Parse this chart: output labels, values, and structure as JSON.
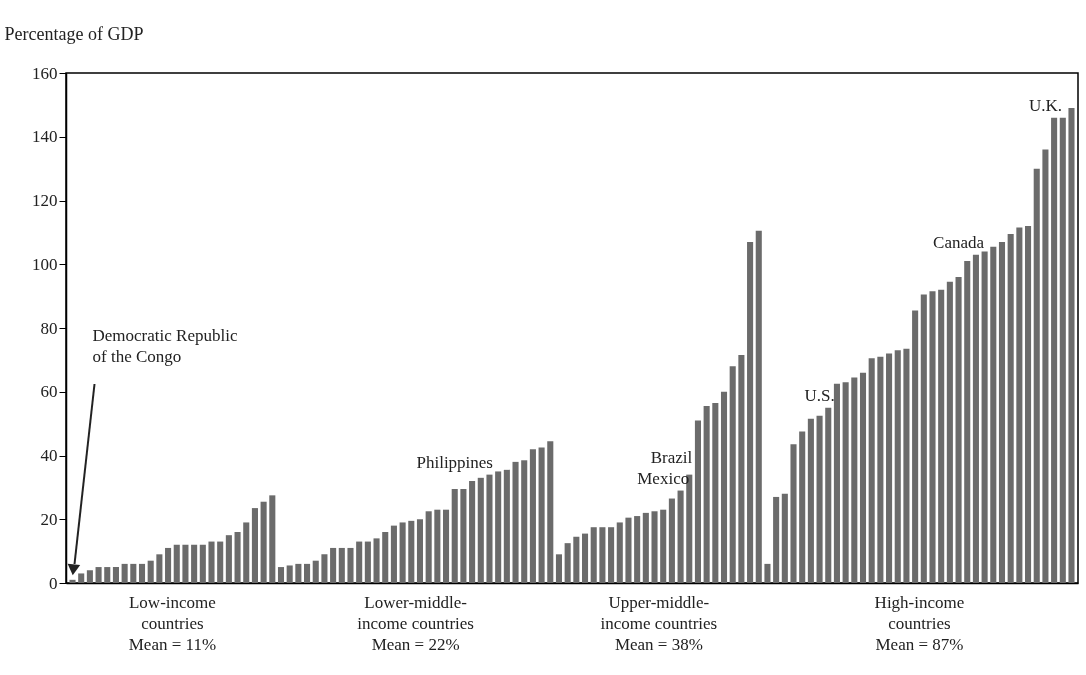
{
  "chart_data": {
    "type": "bar",
    "ylabel": "Percentage of GDP",
    "ylim": [
      0,
      160
    ],
    "yticks": [
      0,
      20,
      40,
      60,
      80,
      100,
      120,
      140,
      160
    ],
    "categories": [
      null,
      null,
      null,
      null,
      null,
      null,
      null,
      null,
      null,
      null,
      null,
      null,
      null,
      null,
      null,
      null,
      null,
      null,
      null,
      null,
      null,
      null,
      null,
      null,
      null,
      null,
      null,
      null,
      null,
      null,
      null,
      null,
      null,
      null,
      null,
      null,
      null,
      null,
      null,
      null,
      null,
      null,
      null,
      null,
      null,
      null,
      null,
      null,
      null,
      null,
      null,
      null,
      null,
      null,
      null,
      null,
      null,
      null,
      null,
      null,
      null,
      null,
      null,
      null,
      null,
      null,
      null,
      null,
      null,
      null,
      null,
      null,
      null,
      null,
      null,
      null,
      null,
      null,
      null,
      null,
      null,
      null,
      null,
      null,
      null,
      null,
      null,
      null,
      null,
      null,
      null,
      null,
      null,
      null,
      null,
      null,
      null,
      null,
      null,
      null,
      null,
      null,
      null,
      null,
      null,
      null,
      null,
      null,
      null,
      null,
      null,
      null,
      null,
      null,
      null,
      null
    ],
    "series": [
      {
        "name": "Low-income\ncountries\nMean = 11%",
        "color": "#6b6b6b",
        "values": [
          1,
          3,
          4,
          5,
          5,
          5,
          6,
          6,
          6,
          7,
          9,
          11,
          12,
          12,
          12,
          12,
          13,
          13,
          15,
          16,
          19,
          23.5,
          25.5,
          27.5,
          null,
          null,
          null,
          null,
          null,
          null,
          null,
          null,
          null,
          null,
          null,
          null,
          null,
          null,
          null,
          null,
          null,
          null,
          null,
          null,
          null,
          null,
          null,
          null,
          null,
          null,
          null,
          null,
          null,
          null,
          null,
          null,
          null,
          null,
          null,
          null,
          null,
          null,
          null,
          null,
          null,
          null,
          null,
          null,
          null,
          null,
          null,
          null,
          null,
          null,
          null,
          null,
          null,
          null,
          null,
          null,
          null,
          null,
          null,
          null,
          null,
          null,
          null,
          null,
          null,
          null,
          null,
          null,
          null,
          null,
          null,
          null,
          null,
          null,
          null,
          null,
          null,
          null,
          null,
          null,
          null,
          null,
          null,
          null,
          null,
          null,
          null,
          null,
          null,
          null,
          null,
          null
        ]
      },
      {
        "name": "Lower-middle-\nincome countries\nMean = 22%",
        "color": "#6b6b6b",
        "values": [
          null,
          null,
          null,
          null,
          null,
          null,
          null,
          null,
          null,
          null,
          null,
          null,
          null,
          null,
          null,
          null,
          null,
          null,
          null,
          null,
          null,
          null,
          null,
          null,
          5,
          5.5,
          6,
          6,
          7,
          9,
          11,
          11,
          11,
          13,
          13,
          14,
          16,
          18,
          19,
          19.5,
          20,
          22.5,
          23,
          23,
          29.5,
          29.5,
          32,
          33,
          34,
          35,
          35.5,
          38,
          38.5,
          42,
          42.5,
          44.5,
          null,
          null,
          null,
          null,
          null,
          null,
          null,
          null,
          null,
          null,
          null,
          null,
          null,
          null,
          null,
          null,
          null,
          null,
          null,
          null,
          null,
          null,
          null,
          null,
          null,
          null,
          null,
          null,
          null,
          null,
          null,
          null,
          null,
          null,
          null,
          null,
          null,
          null,
          null,
          null,
          null,
          null,
          null,
          null,
          null,
          null,
          null,
          null,
          null,
          null,
          null,
          null,
          null,
          null,
          null,
          null,
          null,
          null,
          null,
          null
        ],
        "value_labels": [
          null,
          null,
          null,
          null,
          null,
          null,
          null,
          null,
          null,
          null,
          null,
          null,
          null,
          null,
          null,
          null,
          null,
          null,
          null,
          null,
          null,
          null,
          null,
          null,
          null,
          null,
          null,
          null,
          null,
          null,
          null,
          null,
          null,
          null,
          null,
          null,
          null,
          null,
          null,
          null,
          null,
          null,
          null,
          null,
          "Philippines",
          null,
          null,
          null,
          null,
          null,
          null,
          null,
          null,
          null,
          null,
          null,
          null,
          null,
          null,
          null,
          null,
          null,
          null,
          null,
          null,
          null,
          null,
          null,
          null,
          null,
          null,
          null,
          null,
          null,
          null,
          null,
          null,
          null,
          null,
          null,
          null,
          null,
          null,
          null,
          null,
          null,
          null,
          null,
          null,
          null,
          null,
          null,
          null,
          null,
          null,
          null,
          null,
          null,
          null,
          null,
          null,
          null,
          null,
          null,
          null,
          null,
          null,
          null,
          null,
          null,
          null,
          null,
          null,
          null,
          null,
          null
        ]
      },
      {
        "name": "Upper-middle-\nincome countries\nMean = 38%",
        "color": "#6b6b6b",
        "values": [
          null,
          null,
          null,
          null,
          null,
          null,
          null,
          null,
          null,
          null,
          null,
          null,
          null,
          null,
          null,
          null,
          null,
          null,
          null,
          null,
          null,
          null,
          null,
          null,
          null,
          null,
          null,
          null,
          null,
          null,
          null,
          null,
          null,
          null,
          null,
          null,
          null,
          null,
          null,
          null,
          null,
          null,
          null,
          null,
          null,
          null,
          null,
          null,
          null,
          null,
          null,
          null,
          null,
          null,
          null,
          null,
          9,
          12.5,
          14.5,
          15.5,
          17.5,
          17.5,
          17.5,
          19,
          20.5,
          21,
          22,
          22.5,
          23,
          26.5,
          29,
          34,
          51,
          55.5,
          56.5,
          60,
          68,
          71.5,
          107,
          110.5,
          null,
          null,
          null,
          null,
          null,
          null,
          null,
          null,
          null,
          null,
          null,
          null,
          null,
          null,
          null,
          null,
          null,
          null,
          null,
          null,
          null,
          null,
          null,
          null,
          null,
          null,
          null,
          null,
          null,
          null,
          null,
          null,
          null,
          null,
          null,
          null
        ],
        "value_labels": [
          null,
          null,
          null,
          null,
          null,
          null,
          null,
          null,
          null,
          null,
          null,
          null,
          null,
          null,
          null,
          null,
          null,
          null,
          null,
          null,
          null,
          null,
          null,
          null,
          null,
          null,
          null,
          null,
          null,
          null,
          null,
          null,
          null,
          null,
          null,
          null,
          null,
          null,
          null,
          null,
          null,
          null,
          null,
          null,
          null,
          null,
          null,
          null,
          null,
          null,
          null,
          null,
          null,
          null,
          null,
          null,
          null,
          null,
          null,
          null,
          null,
          null,
          null,
          null,
          null,
          null,
          null,
          null,
          "Mexico",
          null,
          null,
          "Brazil",
          null,
          null,
          null,
          null,
          null,
          null,
          null,
          null,
          null,
          null,
          null,
          null,
          null,
          null,
          null,
          null,
          null,
          null,
          null,
          null,
          null,
          null,
          null,
          null,
          null,
          null,
          null,
          null,
          null,
          null,
          null,
          null,
          null,
          null,
          null,
          null,
          null,
          null,
          null,
          null,
          null,
          null,
          null,
          null
        ]
      },
      {
        "name": "High-income\ncountries\nMean = 87%",
        "color": "#6b6b6b",
        "values": [
          null,
          null,
          null,
          null,
          null,
          null,
          null,
          null,
          null,
          null,
          null,
          null,
          null,
          null,
          null,
          null,
          null,
          null,
          null,
          null,
          null,
          null,
          null,
          null,
          null,
          null,
          null,
          null,
          null,
          null,
          null,
          null,
          null,
          null,
          null,
          null,
          null,
          null,
          null,
          null,
          null,
          null,
          null,
          null,
          null,
          null,
          null,
          null,
          null,
          null,
          null,
          null,
          null,
          null,
          null,
          null,
          null,
          null,
          null,
          null,
          null,
          null,
          null,
          null,
          null,
          null,
          null,
          null,
          null,
          null,
          null,
          null,
          null,
          null,
          null,
          null,
          null,
          null,
          null,
          null,
          6,
          27,
          28,
          43.5,
          47.5,
          51.5,
          52.5,
          55,
          62.5,
          63,
          64.5,
          66,
          70.5,
          71,
          72,
          73,
          73.5,
          85.5,
          90.5,
          91.5,
          92,
          94.5,
          96,
          101,
          103,
          104,
          105.5,
          107,
          109.5,
          111.5,
          112,
          130,
          136,
          146,
          146,
          149
        ],
        "value_labels": [
          null,
          null,
          null,
          null,
          null,
          null,
          null,
          null,
          null,
          null,
          null,
          null,
          null,
          null,
          null,
          null,
          null,
          null,
          null,
          null,
          null,
          null,
          null,
          null,
          null,
          null,
          null,
          null,
          null,
          null,
          null,
          null,
          null,
          null,
          null,
          null,
          null,
          null,
          null,
          null,
          null,
          null,
          null,
          null,
          null,
          null,
          null,
          null,
          null,
          null,
          null,
          null,
          null,
          null,
          null,
          null,
          null,
          null,
          null,
          null,
          null,
          null,
          null,
          null,
          null,
          null,
          null,
          null,
          null,
          null,
          null,
          null,
          null,
          null,
          null,
          null,
          null,
          null,
          null,
          null,
          null,
          null,
          null,
          null,
          null,
          null,
          "U.S.",
          null,
          null,
          null,
          null,
          null,
          null,
          null,
          null,
          null,
          null,
          null,
          null,
          null,
          null,
          null,
          "Canada",
          null,
          null,
          null,
          null,
          null,
          null,
          null,
          null,
          null,
          "U.K.",
          null,
          null,
          null
        ]
      }
    ],
    "annotations": [
      "Democratic Republic\nof the Congo"
    ]
  }
}
